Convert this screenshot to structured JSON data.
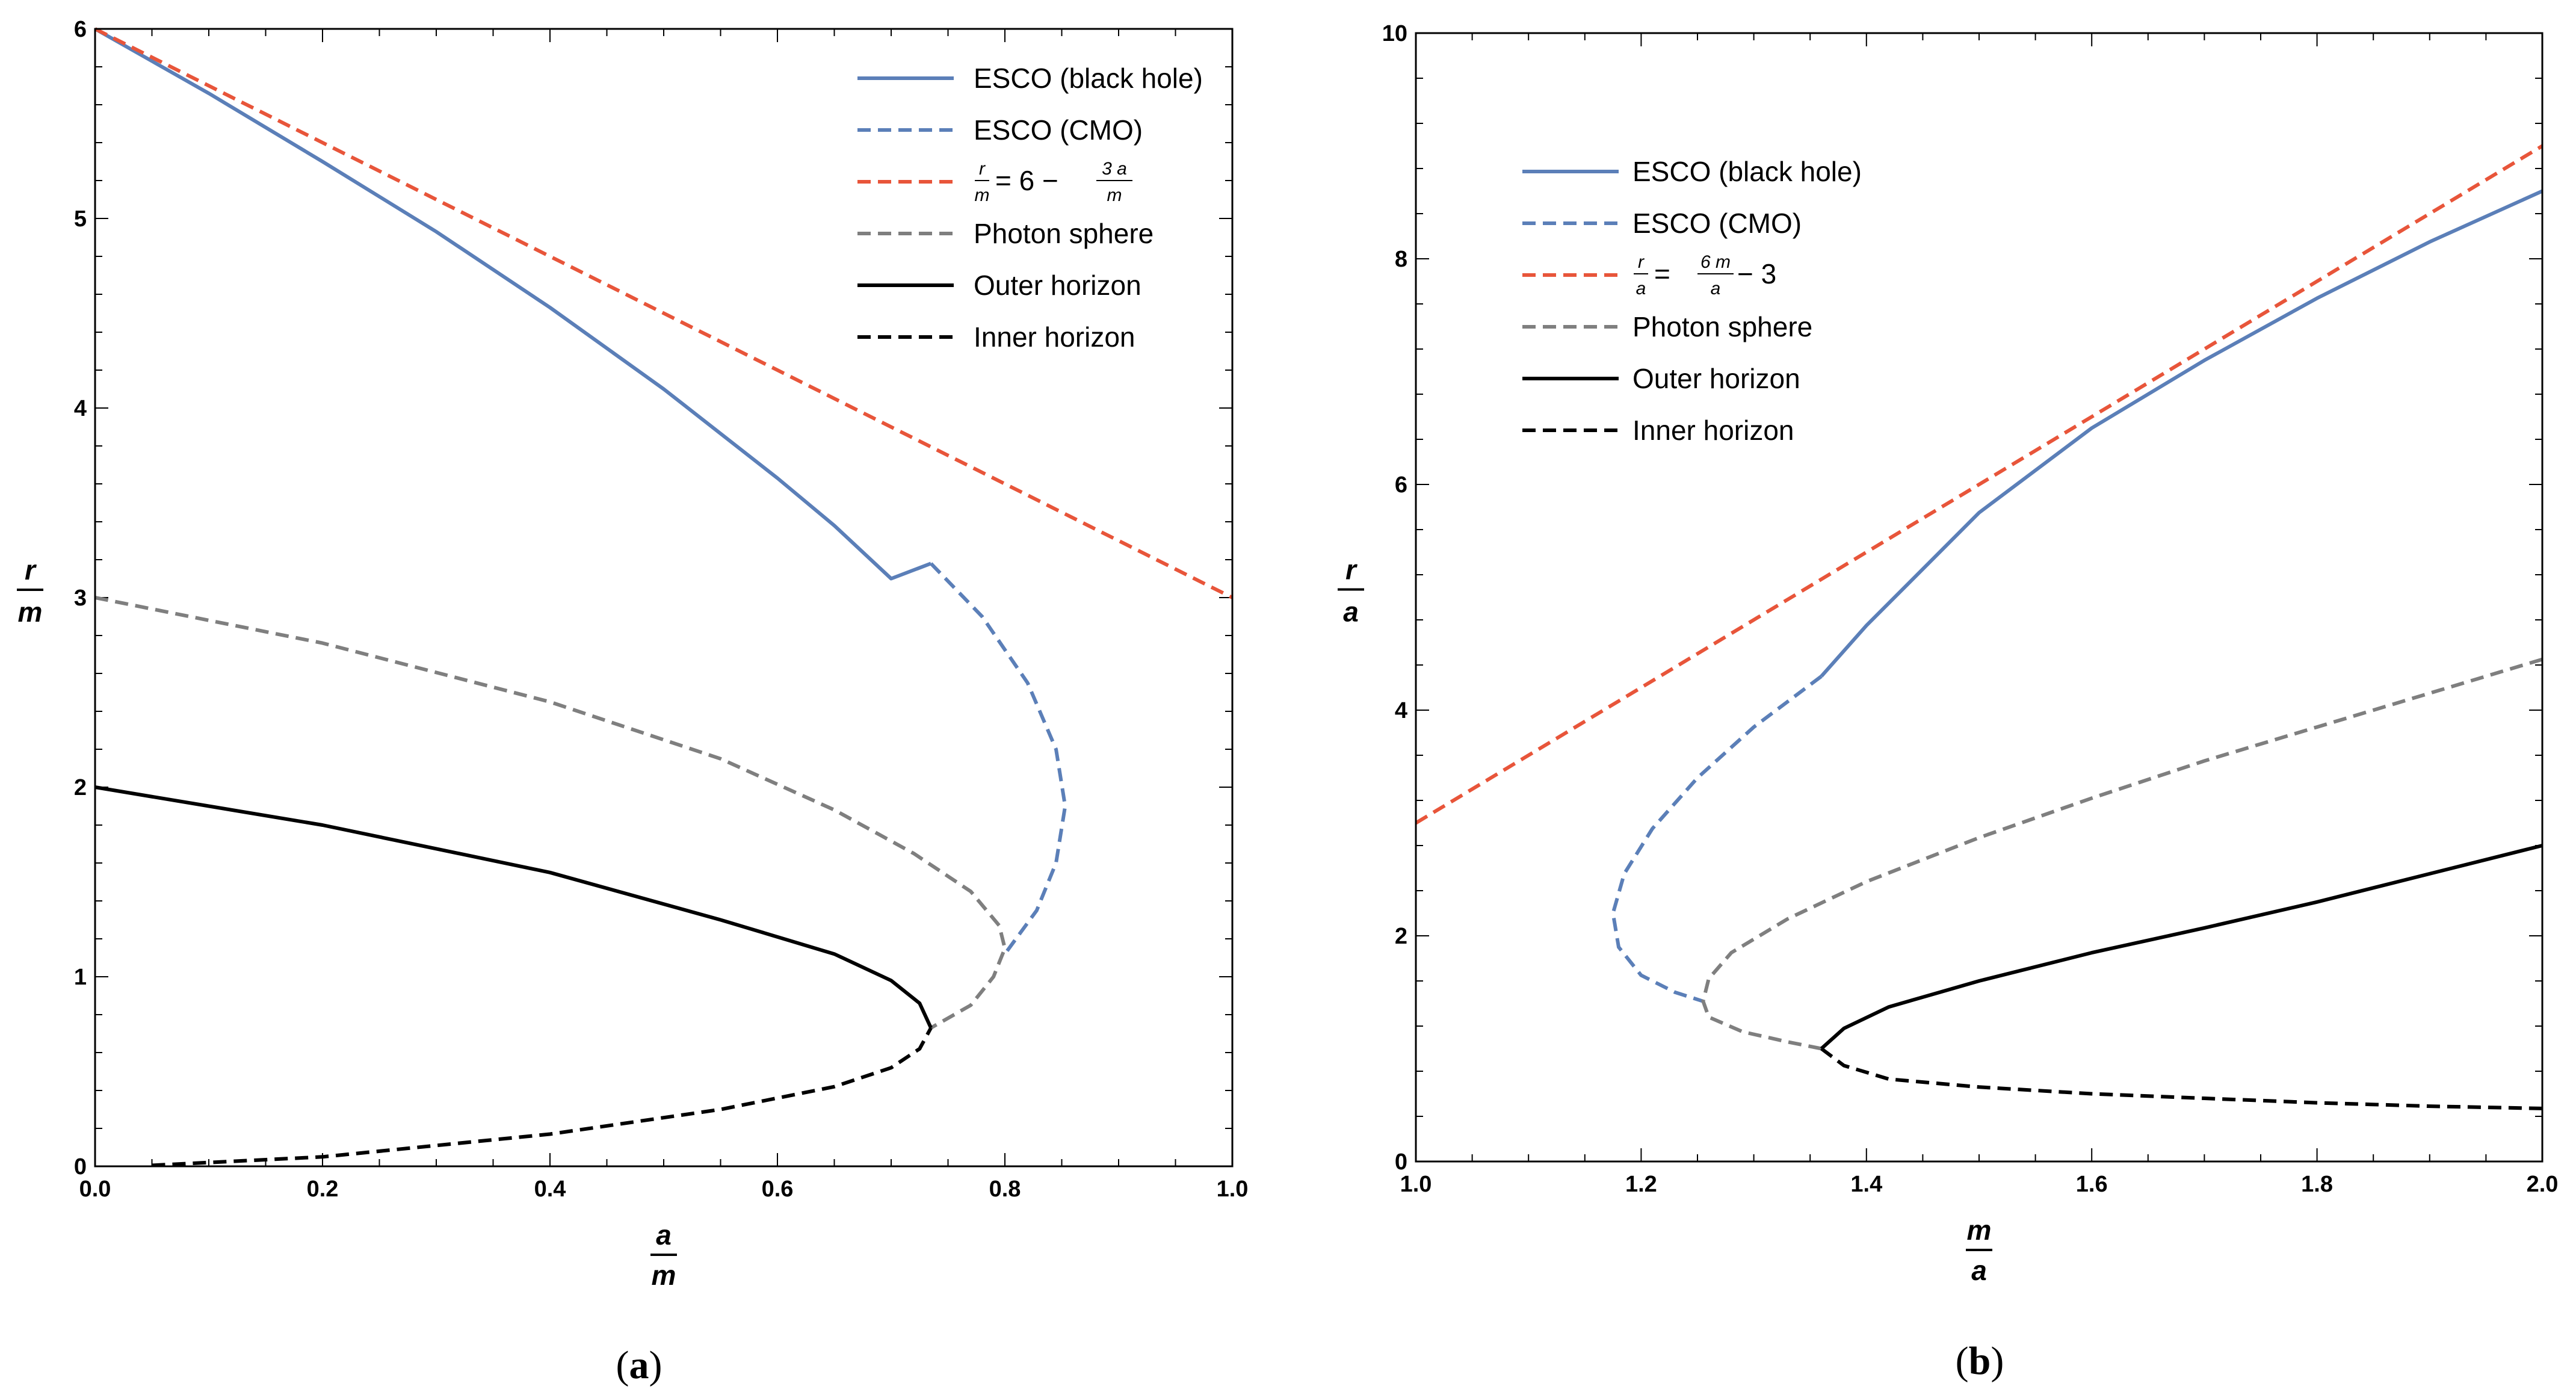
{
  "colors": {
    "blue": "#5b7fb8",
    "red": "#e8553a",
    "gray": "#7f7f7f",
    "black": "#000000"
  },
  "chart_data": [
    {
      "type": "line",
      "panel": "a",
      "caption_letter": "a",
      "xlabel": {
        "num": "a",
        "den": "m"
      },
      "ylabel": {
        "num": "r",
        "den": "m"
      },
      "xlim": [
        0,
        1
      ],
      "ylim": [
        0,
        6
      ],
      "xticks": [
        0.0,
        0.2,
        0.4,
        0.6,
        0.8,
        1.0
      ],
      "xtick_labels": [
        "0.0",
        "0.2",
        "0.4",
        "0.6",
        "0.8",
        "1.0"
      ],
      "yticks": [
        0,
        1,
        2,
        3,
        4,
        5,
        6
      ],
      "ytick_labels": [
        "0",
        "1",
        "2",
        "3",
        "4",
        "5",
        "6"
      ],
      "legend": {
        "placement": "top-right",
        "entries": [
          {
            "label": "ESCO (black hole)",
            "color": "blue",
            "dashed": false
          },
          {
            "label": "ESCO (CMO)",
            "color": "blue",
            "dashed": true
          },
          {
            "label": "",
            "formula": {
              "lhs_num": "r",
              "lhs_den": "m",
              "mid": " = 6 − ",
              "rhs_num": "3 a",
              "rhs_den": "m",
              "tail": ""
            },
            "color": "red",
            "dashed": true
          },
          {
            "label": "Photon sphere",
            "color": "gray",
            "dashed": true
          },
          {
            "label": "Outer horizon",
            "color": "black",
            "dashed": false
          },
          {
            "label": "Inner horizon",
            "color": "black",
            "dashed": true
          }
        ]
      },
      "series": [
        {
          "name": "ESCO (black hole)",
          "color": "blue",
          "dashed": false,
          "x": [
            0,
            0.1,
            0.2,
            0.3,
            0.4,
            0.5,
            0.6,
            0.65,
            0.7,
            0.735
          ],
          "y": [
            6,
            5.66,
            5.3,
            4.93,
            4.53,
            4.1,
            3.63,
            3.38,
            3.1,
            3.18
          ]
        },
        {
          "name": "ESCO (CMO)",
          "color": "blue",
          "dashed": true,
          "x": [
            0.735,
            0.78,
            0.82,
            0.845,
            0.853,
            0.845,
            0.828,
            0.8
          ],
          "y": [
            3.18,
            2.9,
            2.55,
            2.2,
            1.9,
            1.6,
            1.35,
            1.12
          ]
        },
        {
          "name": "r/m = 6 - 3a/m",
          "color": "red",
          "dashed": true,
          "x": [
            0,
            1
          ],
          "y": [
            6,
            3
          ]
        },
        {
          "name": "Photon sphere",
          "color": "gray",
          "dashed": true,
          "x": [
            0,
            0.2,
            0.4,
            0.55,
            0.65,
            0.72,
            0.77,
            0.795,
            0.8,
            0.79,
            0.77,
            0.735
          ],
          "y": [
            3,
            2.76,
            2.45,
            2.15,
            1.88,
            1.65,
            1.45,
            1.27,
            1.15,
            1.0,
            0.85,
            0.73
          ]
        },
        {
          "name": "Outer horizon",
          "color": "black",
          "dashed": false,
          "x": [
            0,
            0.2,
            0.4,
            0.55,
            0.65,
            0.7,
            0.725,
            0.735
          ],
          "y": [
            2,
            1.8,
            1.55,
            1.3,
            1.12,
            0.98,
            0.86,
            0.73
          ]
        },
        {
          "name": "Inner horizon",
          "color": "black",
          "dashed": true,
          "x": [
            0.05,
            0.2,
            0.4,
            0.55,
            0.65,
            0.7,
            0.725,
            0.735
          ],
          "y": [
            0.005,
            0.05,
            0.17,
            0.3,
            0.42,
            0.52,
            0.62,
            0.73
          ]
        }
      ]
    },
    {
      "type": "line",
      "panel": "b",
      "caption_letter": "b",
      "xlabel": {
        "num": "m",
        "den": "a"
      },
      "ylabel": {
        "num": "r",
        "den": "a"
      },
      "xlim": [
        1,
        2
      ],
      "ylim": [
        0,
        10
      ],
      "xticks": [
        1.0,
        1.2,
        1.4,
        1.6,
        1.8,
        2.0
      ],
      "xtick_labels": [
        "1.0",
        "1.2",
        "1.4",
        "1.6",
        "1.8",
        "2.0"
      ],
      "yticks": [
        0,
        2,
        4,
        6,
        8,
        10
      ],
      "ytick_labels": [
        "0",
        "2",
        "4",
        "6",
        "8",
        "10"
      ],
      "legend": {
        "placement": "top-left",
        "entries": [
          {
            "label": "ESCO (black hole)",
            "color": "blue",
            "dashed": false
          },
          {
            "label": "ESCO (CMO)",
            "color": "blue",
            "dashed": true
          },
          {
            "label": "",
            "formula": {
              "lhs_num": "r",
              "lhs_den": "a",
              "mid": " = ",
              "rhs_num": "6 m",
              "rhs_den": "a",
              "tail": " − 3"
            },
            "color": "red",
            "dashed": true
          },
          {
            "label": "Photon sphere",
            "color": "gray",
            "dashed": true
          },
          {
            "label": "Outer horizon",
            "color": "black",
            "dashed": false
          },
          {
            "label": "Inner horizon",
            "color": "black",
            "dashed": true
          }
        ]
      },
      "series": [
        {
          "name": "ESCO (black hole)",
          "color": "blue",
          "dashed": false,
          "x": [
            1.36,
            1.4,
            1.5,
            1.6,
            1.7,
            1.8,
            1.9,
            2.0
          ],
          "y": [
            4.3,
            4.75,
            5.75,
            6.5,
            7.1,
            7.65,
            8.15,
            8.6
          ]
        },
        {
          "name": "ESCO (CMO)",
          "color": "blue",
          "dashed": true,
          "x": [
            1.36,
            1.3,
            1.25,
            1.21,
            1.185,
            1.175,
            1.18,
            1.2,
            1.23,
            1.255
          ],
          "y": [
            4.3,
            3.85,
            3.4,
            2.95,
            2.55,
            2.2,
            1.9,
            1.65,
            1.5,
            1.42
          ]
        },
        {
          "name": "r/a = 6m/a - 3",
          "color": "red",
          "dashed": true,
          "x": [
            1,
            2
          ],
          "y": [
            3,
            9
          ]
        },
        {
          "name": "Photon sphere",
          "color": "gray",
          "dashed": true,
          "x": [
            2.0,
            1.9,
            1.8,
            1.7,
            1.6,
            1.5,
            1.4,
            1.33,
            1.28,
            1.26,
            1.255,
            1.26,
            1.29,
            1.33,
            1.36
          ],
          "y": [
            4.45,
            4.15,
            3.85,
            3.55,
            3.22,
            2.87,
            2.48,
            2.15,
            1.85,
            1.62,
            1.42,
            1.28,
            1.15,
            1.06,
            1.0
          ]
        },
        {
          "name": "Outer horizon",
          "color": "black",
          "dashed": false,
          "x": [
            1.36,
            1.38,
            1.42,
            1.5,
            1.6,
            1.7,
            1.8,
            1.9,
            2.0
          ],
          "y": [
            1.0,
            1.18,
            1.37,
            1.6,
            1.85,
            2.07,
            2.3,
            2.55,
            2.8
          ]
        },
        {
          "name": "Inner horizon",
          "color": "black",
          "dashed": true,
          "x": [
            1.36,
            1.38,
            1.42,
            1.5,
            1.6,
            1.7,
            1.8,
            1.9,
            2.0
          ],
          "y": [
            1.0,
            0.85,
            0.73,
            0.66,
            0.6,
            0.56,
            0.52,
            0.49,
            0.47
          ]
        }
      ]
    }
  ]
}
